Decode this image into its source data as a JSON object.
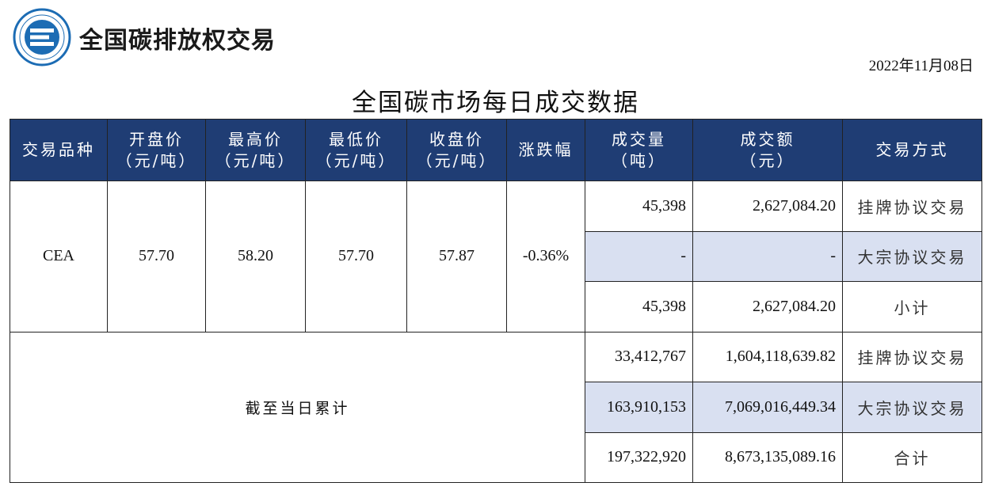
{
  "header": {
    "brand": "全国碳排放权交易",
    "date": "2022年11月08日",
    "title": "全国碳市场每日成交数据"
  },
  "colors": {
    "header_bg": "#1f3d74",
    "shade_bg": "#d9e0f1",
    "logo_blue": "#1c6cb4"
  },
  "table": {
    "columns": [
      {
        "line1": "交易品种",
        "line2": ""
      },
      {
        "line1": "开盘价",
        "line2": "（元/吨）"
      },
      {
        "line1": "最高价",
        "line2": "（元/吨）"
      },
      {
        "line1": "最低价",
        "line2": "（元/吨）"
      },
      {
        "line1": "收盘价",
        "line2": "（元/吨）"
      },
      {
        "line1": "涨跌幅",
        "line2": ""
      },
      {
        "line1": "成交量",
        "line2": "（吨）"
      },
      {
        "line1": "成交额",
        "line2": "（元）"
      },
      {
        "line1": "交易方式",
        "line2": ""
      }
    ],
    "daily": {
      "product": "CEA",
      "open": "57.70",
      "high": "58.20",
      "low": "57.70",
      "close": "57.87",
      "change": "-0.36%",
      "rows": [
        {
          "volume": "45,398",
          "amount": "2,627,084.20",
          "method": "挂牌协议交易"
        },
        {
          "volume": "-",
          "amount": "-",
          "method": "大宗协议交易"
        },
        {
          "volume": "45,398",
          "amount": "2,627,084.20",
          "method": "小计"
        }
      ]
    },
    "cumulative": {
      "label": "截至当日累计",
      "rows": [
        {
          "volume": "33,412,767",
          "amount": "1,604,118,639.82",
          "method": "挂牌协议交易"
        },
        {
          "volume": "163,910,153",
          "amount": "7,069,016,449.34",
          "method": "大宗协议交易"
        },
        {
          "volume": "197,322,920",
          "amount": "8,673,135,089.16",
          "method": "合计"
        }
      ]
    }
  }
}
